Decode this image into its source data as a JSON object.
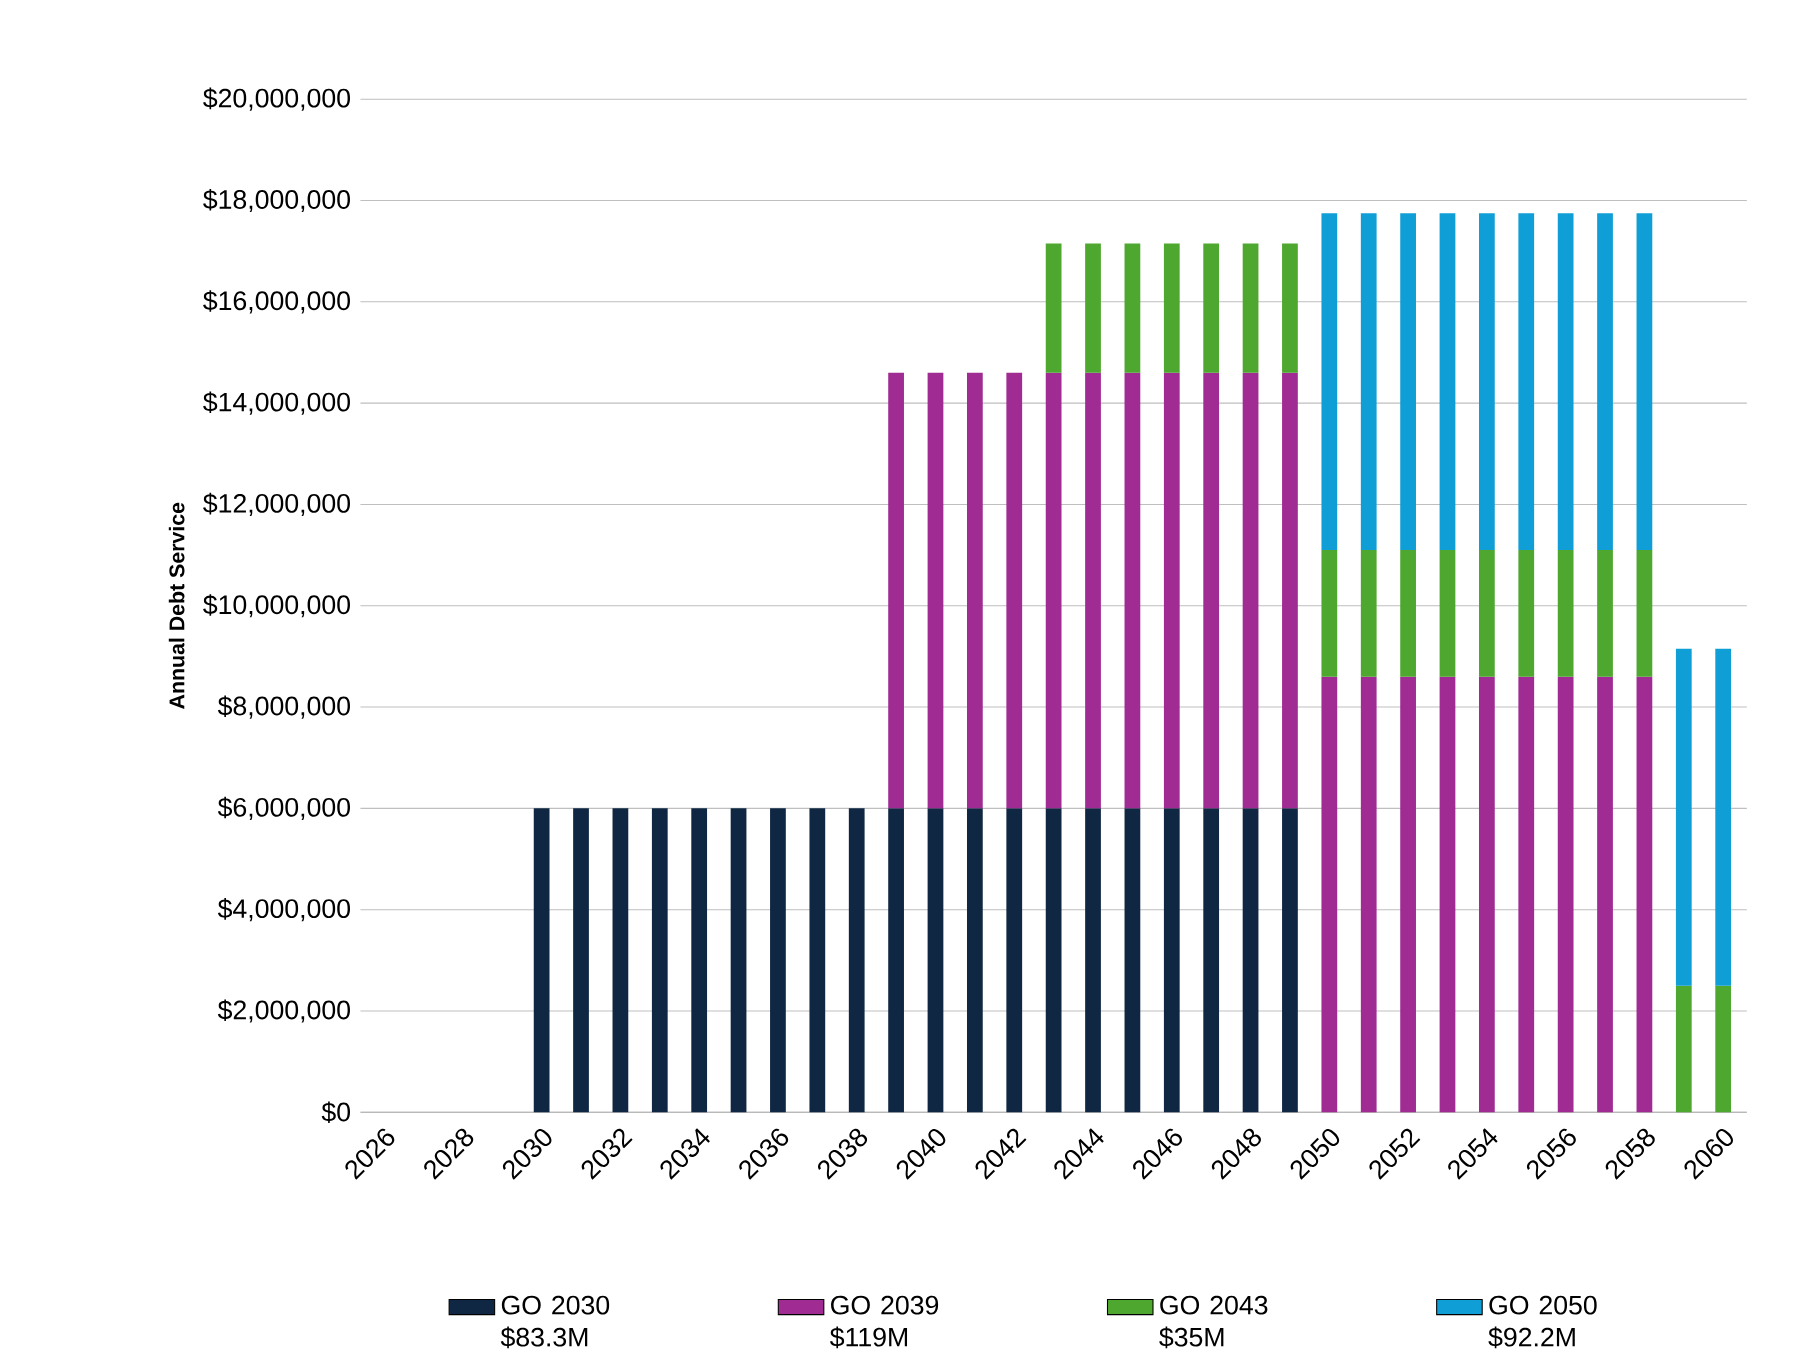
{
  "chart_data": {
    "type": "bar",
    "stacked": true,
    "ylabel": "Annual Debt Service",
    "categories": [
      "2026",
      null,
      "2028",
      null,
      "2030",
      null,
      "2032",
      null,
      "2034",
      null,
      "2036",
      null,
      "2038",
      null,
      "2040",
      null,
      "2042",
      null,
      "2044",
      null,
      "2046",
      null,
      "2048",
      null,
      "2050",
      null,
      "2052",
      null,
      "2054",
      null,
      "2056",
      null,
      "2058",
      null,
      "2060"
    ],
    "series": [
      {
        "name": "GO 2030 $83.3M",
        "color": "#0f2742",
        "values": [
          null,
          null,
          null,
          null,
          6000000,
          6000000,
          6000000,
          6000000,
          6000000,
          6000000,
          6000000,
          6000000,
          6000000,
          6000000,
          6000000,
          6000000,
          6000000,
          6000000,
          6000000,
          6000000,
          6000000,
          6000000,
          6000000,
          6000000,
          null,
          null,
          null,
          null,
          null,
          null,
          null,
          null,
          null,
          null,
          null
        ]
      },
      {
        "name": "GO 2039 $119M",
        "color": "#a02b93",
        "values": [
          null,
          null,
          null,
          null,
          null,
          null,
          null,
          null,
          null,
          null,
          null,
          null,
          null,
          8600000,
          8600000,
          8600000,
          8600000,
          8600000,
          8600000,
          8600000,
          8600000,
          8600000,
          8600000,
          8600000,
          8600000,
          8600000,
          8600000,
          8600000,
          8600000,
          8600000,
          8600000,
          8600000,
          8600000,
          null,
          null
        ]
      },
      {
        "name": "GO 2043 $35M",
        "color": "#4ea72e",
        "values": [
          null,
          null,
          null,
          null,
          null,
          null,
          null,
          null,
          null,
          null,
          null,
          null,
          null,
          null,
          null,
          null,
          null,
          2550000,
          2550000,
          2550000,
          2550000,
          2550000,
          2550000,
          2550000,
          2500000,
          2500000,
          2500000,
          2500000,
          2500000,
          2500000,
          2500000,
          2500000,
          2500000,
          2500000,
          2500000
        ]
      },
      {
        "name": "GO 2050 $92.2M",
        "color": "#0f9ed5",
        "values": [
          null,
          null,
          null,
          null,
          null,
          null,
          null,
          null,
          null,
          null,
          null,
          null,
          null,
          null,
          null,
          null,
          null,
          null,
          null,
          null,
          null,
          null,
          null,
          null,
          6650000,
          6650000,
          6650000,
          6650000,
          6650000,
          6650000,
          6650000,
          6650000,
          6650000,
          6650000,
          6650000
        ]
      }
    ],
    "ylim": [
      0,
      20000000
    ],
    "yticks": [
      {
        "value": 0,
        "label": "$0"
      },
      {
        "value": 2000000,
        "label": "$2,000,000"
      },
      {
        "value": 4000000,
        "label": "$4,000,000"
      },
      {
        "value": 6000000,
        "label": "$6,000,000"
      },
      {
        "value": 8000000,
        "label": "$8,000,000"
      },
      {
        "value": 10000000,
        "label": "$10,000,000"
      },
      {
        "value": 12000000,
        "label": "$12,000,000"
      },
      {
        "value": 14000000,
        "label": "$14,000,000"
      },
      {
        "value": 16000000,
        "label": "$16,000,000"
      },
      {
        "value": 18000000,
        "label": "$18,000,000"
      },
      {
        "value": 20000000,
        "label": "$20,000,000"
      }
    ],
    "grid": "y",
    "legend": "bottom"
  }
}
